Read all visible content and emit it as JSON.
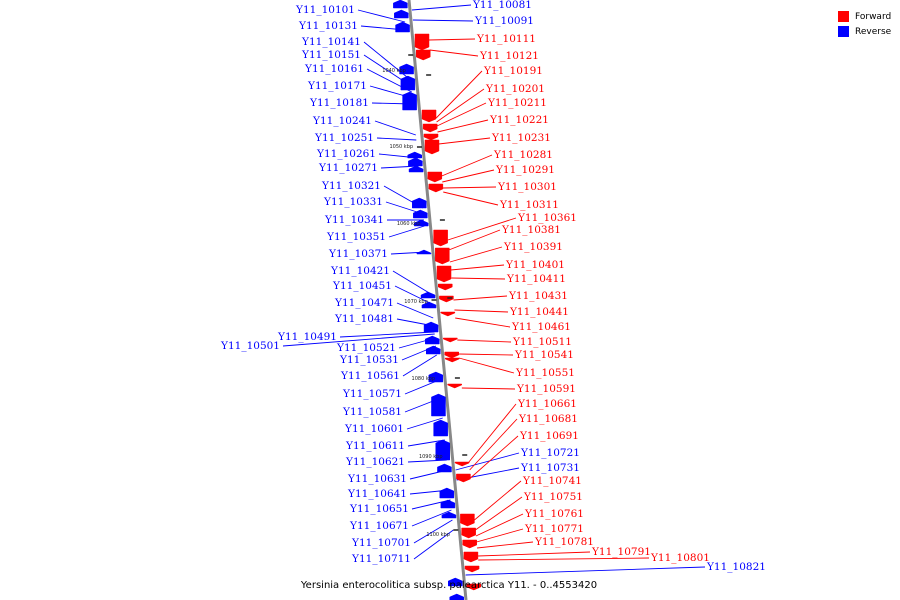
{
  "caption": "Yersinia enterocolitica subsp. palearctica Y11. - 0..4553420",
  "legend": [
    {
      "label": "Forward",
      "color": "#ff0000"
    },
    {
      "label": "Reverse",
      "color": "#0000ff"
    }
  ],
  "colors": {
    "forward": "#ff0000",
    "reverse": "#0000ff",
    "backbone": "#888888"
  },
  "ticks": [
    "1040 kbp",
    "1050 kbp",
    "1060 kbp",
    "1070 kbp",
    "1080 kbp",
    "1090 kbp",
    "1100 kbp"
  ],
  "reverse_genes": [
    "Y11_10101",
    "Y11_10131",
    "Y11_10141",
    "Y11_10151",
    "Y11_10161",
    "Y11_10171",
    "Y11_10181",
    "Y11_10241",
    "Y11_10251",
    "Y11_10261",
    "Y11_10271",
    "Y11_10321",
    "Y11_10331",
    "Y11_10341",
    "Y11_10351",
    "Y11_10371",
    "Y11_10421",
    "Y11_10451",
    "Y11_10471",
    "Y11_10481",
    "Y11_10491",
    "Y11_10501",
    "Y11_10521",
    "Y11_10531",
    "Y11_10561",
    "Y11_10571",
    "Y11_10581",
    "Y11_10601",
    "Y11_10611",
    "Y11_10621",
    "Y11_10631",
    "Y11_10641",
    "Y11_10651",
    "Y11_10671",
    "Y11_10701",
    "Y11_10711"
  ],
  "reverse_genes_right": [
    "Y11_10081",
    "Y11_10091",
    "Y11_10721",
    "Y11_10731",
    "Y11_10821"
  ],
  "forward_genes": [
    "Y11_10111",
    "Y11_10121",
    "Y11_10191",
    "Y11_10201",
    "Y11_10211",
    "Y11_10221",
    "Y11_10231",
    "Y11_10281",
    "Y11_10291",
    "Y11_10301",
    "Y11_10311",
    "Y11_10361",
    "Y11_10381",
    "Y11_10391",
    "Y11_10401",
    "Y11_10411",
    "Y11_10431",
    "Y11_10441",
    "Y11_10461",
    "Y11_10511",
    "Y11_10541",
    "Y11_10551",
    "Y11_10591",
    "Y11_10661",
    "Y11_10681",
    "Y11_10691",
    "Y11_10741",
    "Y11_10751",
    "Y11_10761",
    "Y11_10771",
    "Y11_10781",
    "Y11_10791",
    "Y11_10801"
  ]
}
